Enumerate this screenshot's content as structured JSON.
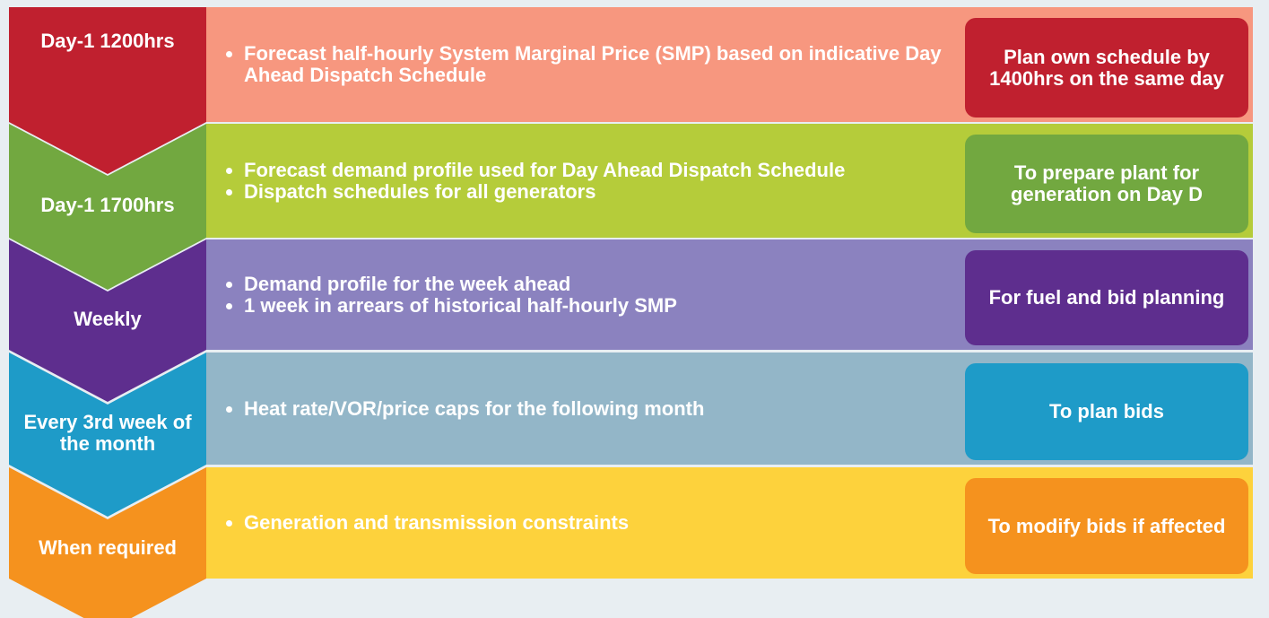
{
  "rows": [
    {
      "label": "Day-1 1200hrs",
      "items": [
        "Forecast half-hourly System Marginal Price (SMP) based on indicative Day Ahead Dispatch Schedule"
      ],
      "action": "Plan own schedule by 1400hrs on the same day",
      "color": "#c0202f",
      "panel_color": "#f7977f"
    },
    {
      "label": "Day-1 1700hrs",
      "items": [
        "Forecast demand profile used for Day Ahead Dispatch Schedule",
        "Dispatch schedules for all generators"
      ],
      "action": "To prepare plant for generation on Day D",
      "color": "#72a840",
      "panel_color": "#b5cc3a"
    },
    {
      "label": "Weekly",
      "items": [
        "Demand profile for the week ahead",
        "1 week in arrears of historical half-hourly SMP"
      ],
      "action": "For fuel and bid planning",
      "color": "#5e2e8e",
      "panel_color": "#8b82bf"
    },
    {
      "label": "Every 3rd week of the month",
      "items": [
        "Heat rate/VOR/price caps for the following month"
      ],
      "action": "To plan bids",
      "color": "#1e9bc8",
      "panel_color": "#93b6c8"
    },
    {
      "label": "When required",
      "items": [
        "Generation and transmission constraints"
      ],
      "action": "To modify bids if affected",
      "color": "#f5921e",
      "panel_color": "#fdd23c"
    }
  ]
}
